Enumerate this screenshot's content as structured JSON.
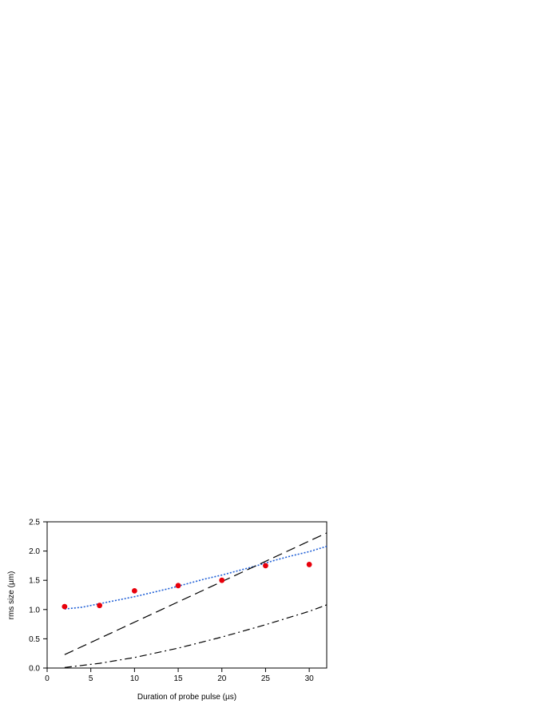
{
  "chart_data": {
    "type": "scatter",
    "title": "",
    "xlabel": "Duration of probe pulse (µs)",
    "ylabel": "rms size (µm)",
    "xlim": [
      0,
      32
    ],
    "ylim": [
      0,
      2.5
    ],
    "x_ticks": [
      "0",
      "5",
      "10",
      "15",
      "20",
      "25",
      "30"
    ],
    "y_ticks": [
      "0.0",
      "0.5",
      "1.0",
      "1.5",
      "2.0",
      "2.5"
    ],
    "grid": false,
    "legend": "none",
    "series": [
      {
        "kind": "points",
        "color": "#e8000b",
        "x": [
          2,
          6,
          10,
          15,
          20,
          25,
          30
        ],
        "y": [
          1.05,
          1.07,
          1.32,
          1.41,
          1.5,
          1.75,
          1.77
        ]
      },
      {
        "kind": "line",
        "style": "dotted",
        "color": "#1f5fd6",
        "x": [
          2,
          4,
          6,
          8,
          10,
          12,
          14,
          16,
          18,
          20,
          22,
          24,
          26,
          28,
          30,
          32
        ],
        "y": [
          1.01,
          1.04,
          1.1,
          1.16,
          1.22,
          1.29,
          1.36,
          1.44,
          1.52,
          1.59,
          1.67,
          1.75,
          1.84,
          1.92,
          1.99,
          2.08
        ]
      },
      {
        "kind": "line",
        "style": "dashed",
        "color": "#000000",
        "x": [
          2,
          32
        ],
        "y": [
          0.23,
          2.31
        ]
      },
      {
        "kind": "line",
        "style": "dash-dot",
        "color": "#000000",
        "x": [
          2,
          6,
          10,
          15,
          20,
          25,
          30,
          32
        ],
        "y": [
          0.01,
          0.08,
          0.18,
          0.34,
          0.53,
          0.74,
          0.97,
          1.08
        ]
      }
    ]
  }
}
